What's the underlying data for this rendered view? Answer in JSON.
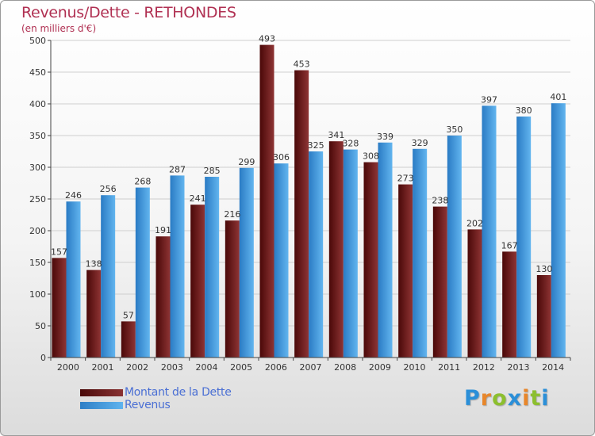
{
  "colors": {
    "dette_dark": "#4a0808",
    "dette_light": "#8e3434",
    "revenus_dark": "#2a7bc4",
    "revenus_light": "#62b5ef",
    "title": "#b03052",
    "legend_text": "#4a6fd4"
  },
  "chart_data": {
    "type": "bar",
    "title": "Revenus/Dette - RETHONDES",
    "subtitle": "(en milliers d'€)",
    "xlabel": "",
    "ylabel": "",
    "ylim": [
      0,
      500
    ],
    "yticks": [
      0,
      50,
      100,
      150,
      200,
      250,
      300,
      350,
      400,
      450,
      500
    ],
    "categories": [
      "2000",
      "2001",
      "2002",
      "2003",
      "2004",
      "2005",
      "2006",
      "2007",
      "2008",
      "2009",
      "2010",
      "2011",
      "2012",
      "2013",
      "2014"
    ],
    "series": [
      {
        "name": "Montant de la Dette",
        "key": "dette",
        "values": [
          157,
          138,
          57,
          191,
          241,
          216,
          493,
          453,
          341,
          308,
          273,
          238,
          202,
          167,
          130
        ]
      },
      {
        "name": "Revenus",
        "key": "revenus",
        "values": [
          246,
          256,
          268,
          287,
          285,
          299,
          306,
          325,
          328,
          339,
          329,
          350,
          397,
          380,
          401
        ]
      }
    ],
    "grid": true,
    "legend_position": "bottom-left"
  },
  "logo": {
    "letters": [
      "P",
      "r",
      "o",
      "x",
      "i",
      "t",
      "i"
    ],
    "colors": [
      "#2b8fd8",
      "#e8862a",
      "#8cbf2e",
      "#2b8fd8",
      "#e8862a",
      "#8cbf2e",
      "#2b8fd8"
    ]
  }
}
